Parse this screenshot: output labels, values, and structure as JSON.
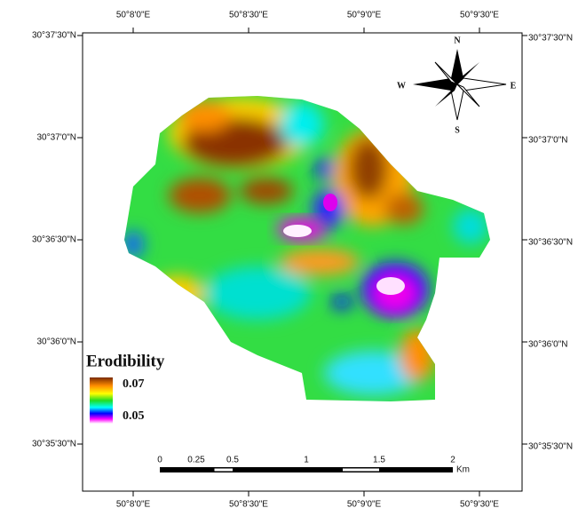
{
  "map": {
    "top_labels": [
      "50°8'0\"E",
      "50°8'30\"E",
      "50°9'0\"E",
      "50°9'30\"E"
    ],
    "bottom_labels": [
      "50°8'0\"E",
      "50°8'30\"E",
      "50°9'0\"E",
      "50°9'30\"E"
    ],
    "left_labels": [
      "30°37'30\"N",
      "30°37'0\"N",
      "30°36'30\"N",
      "30°36'0\"N",
      "30°35'30\"N"
    ],
    "right_labels": [
      "30°37'30\"N",
      "30°37'0\"N",
      "30°36'30\"N",
      "30°36'0\"N",
      "30°35'30\"N"
    ],
    "legend": {
      "title": "Erodibility",
      "high": "0.07",
      "low": "0.05"
    },
    "compass": {
      "north": "N",
      "south": "S",
      "east": "E",
      "west": "W"
    },
    "scale_bar": {
      "labels": [
        "0",
        "0.25",
        "0.5",
        "1",
        "1.5",
        "2"
      ],
      "unit": "Km"
    }
  }
}
